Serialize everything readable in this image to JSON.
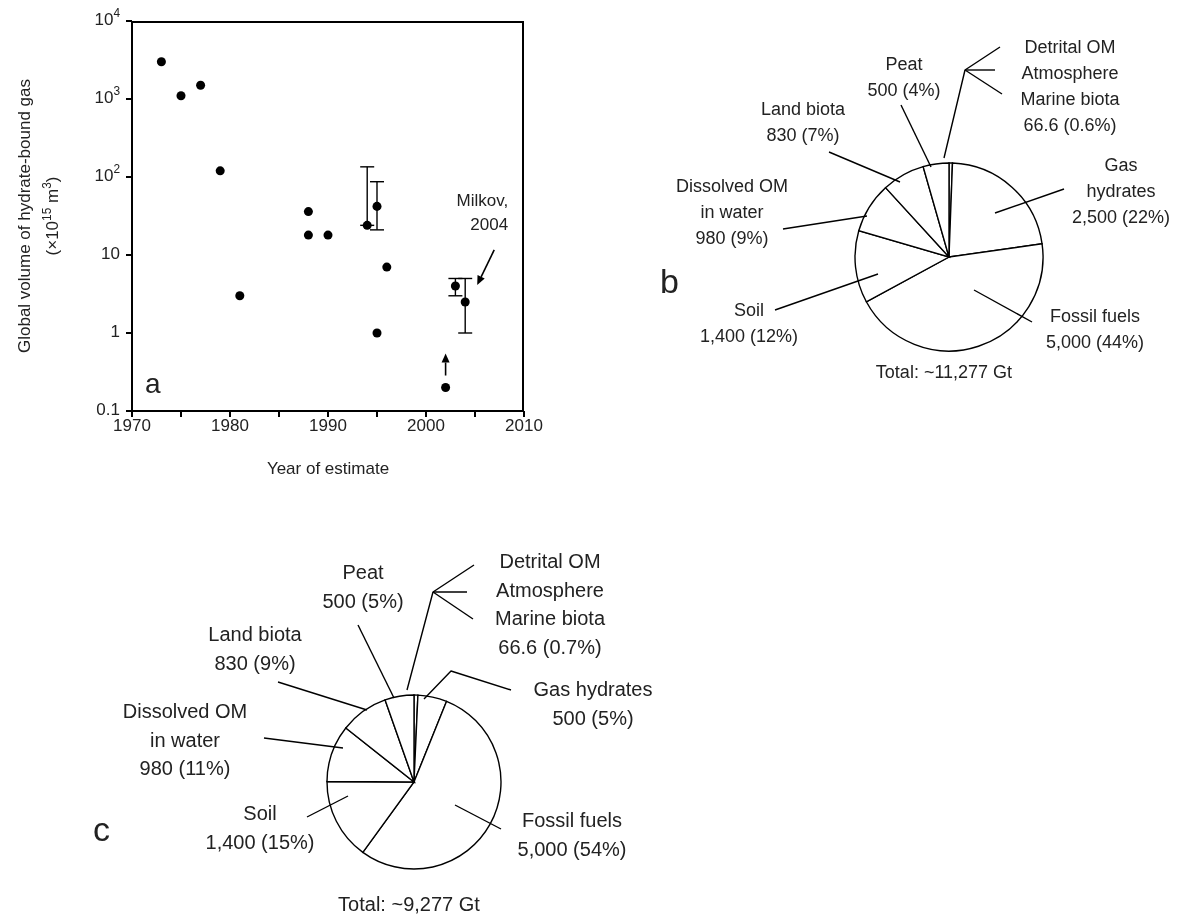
{
  "chart_data": [
    {
      "type": "scatter",
      "xlabel": "Year of estimate",
      "ylabel": "Global volume of hydrate-bound gas (×10$^{15}$ m$^{3}$)",
      "x": [
        1973,
        1975,
        1977,
        1979,
        1981,
        1988,
        1988,
        1990,
        1994,
        1995,
        1996,
        1995,
        2002,
        2003,
        2004
      ],
      "values": [
        3000,
        1100,
        1500,
        120,
        3,
        36,
        18,
        18,
        24,
        42,
        7,
        1,
        0.2,
        4,
        2.5
      ],
      "errors": [
        null,
        null,
        null,
        null,
        null,
        null,
        null,
        null,
        [
          24,
          135
        ],
        [
          21,
          87
        ],
        null,
        null,
        null,
        [
          3,
          5
        ],
        [
          1,
          5
        ]
      ],
      "color": "#000000",
      "marker": "circle",
      "log": "y",
      "xlim": [
        1970,
        2010
      ],
      "xticks": [
        1970,
        {
          "value": 1975,
          "label": null
        },
        1980,
        {
          "value": 1985,
          "label": null
        },
        1990,
        {
          "value": 1995,
          "label": null
        },
        2000,
        {
          "value": 2005,
          "label": null
        },
        2010
      ],
      "ylim": [
        0.1,
        10000
      ],
      "yticks": [
        0.1,
        1,
        10,
        {
          "value": 100,
          "label": "10$^{2}$"
        },
        {
          "value": 1000,
          "label": "10$^{3}$"
        },
        {
          "value": 10000,
          "label": "10$^{4}$"
        }
      ],
      "annotations": [
        "a",
        "Milkov, 2004"
      ]
    },
    {
      "type": "pie",
      "categories": [
        "Detrital OM\nAtmosphere\nMarine biota",
        "Gas\nhydrates",
        "Fossil fuels",
        "Soil",
        "Dissolved OM\nin water",
        "Land biota",
        "Peat"
      ],
      "values": [
        66.6,
        2500,
        5000,
        1400,
        980,
        830,
        500
      ],
      "colors": [
        "#ffffff",
        "#ffffff",
        "#ffffff",
        "#ffffff",
        "#ffffff",
        "#ffffff",
        "#ffffff"
      ],
      "value_labels": [
        "66.6 (0.6%)",
        "2,500 (22%)",
        "5,000 (44%)",
        "1,400 (12%)",
        "980 (9%)",
        "830 (7%)",
        "500 (4%)"
      ],
      "annotations": [
        "b",
        "Total: ~11,277 Gt"
      ]
    },
    {
      "type": "pie",
      "categories": [
        "Detrital OM\nAtmosphere\nMarine biota",
        "Gas hydrates",
        "Fossil fuels",
        "Soil",
        "Dissolved OM\nin water",
        "Land biota",
        "Peat"
      ],
      "values": [
        66.6,
        500,
        5000,
        1400,
        980,
        830,
        500
      ],
      "colors": [
        "#ffffff",
        "#ffffff",
        "#ffffff",
        "#ffffff",
        "#ffffff",
        "#ffffff",
        "#ffffff"
      ],
      "value_labels": [
        "66.6 (0.7%)",
        "500 (5%)",
        "5,000 (54%)",
        "1,400 (15%)",
        "980 (11%)",
        "830 (9%)",
        "500 (5%)"
      ],
      "annotations": [
        "c",
        "Total: ~9,277 Gt"
      ]
    }
  ]
}
